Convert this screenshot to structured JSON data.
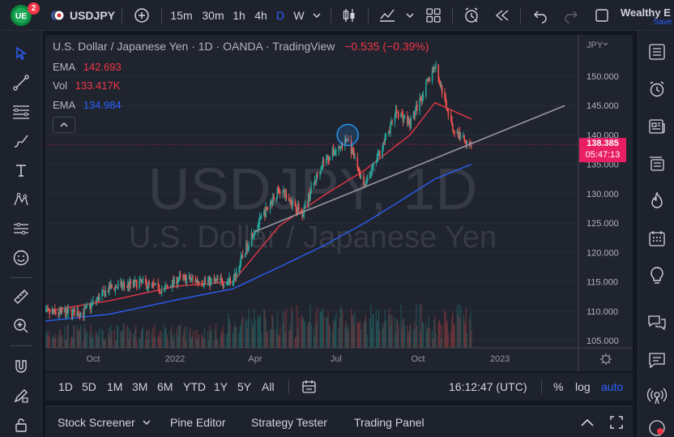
{
  "topbar": {
    "notification_count": "2",
    "symbol": "USDJPY",
    "intervals": [
      "15m",
      "30m",
      "1h",
      "4h",
      "D",
      "W"
    ],
    "account_name": "Wealthy E",
    "save_label": "Save"
  },
  "chart": {
    "header": "U.S. Dollar / Japanese Yen · 1D · OANDA · TradingView",
    "change": "−0.535 (−0.39%)",
    "watermark_symbol": "USDJPY, 1D",
    "watermark_name": "U.S. Dollar / Japanese Yen",
    "currency": "JPY",
    "legend": [
      {
        "label": "EMA",
        "value": "142.693",
        "color": "#f23645"
      },
      {
        "label": "Vol",
        "value": "133.417K",
        "color": "#f23645"
      },
      {
        "label": "EMA",
        "value": "134.984",
        "color": "#2962ff"
      }
    ],
    "price_ticks": [
      "150.000",
      "145.000",
      "140.000",
      "135.000",
      "130.000",
      "125.000",
      "120.000",
      "115.000",
      "110.000",
      "105.000"
    ],
    "time_ticks": [
      "Oct",
      "2022",
      "Apr",
      "Jul",
      "Oct",
      "2023"
    ],
    "last_price": "138.385",
    "countdown": "05:47:13",
    "colors": {
      "up": "#26a69a",
      "down": "#ef5350",
      "ema_fast": "#f23645",
      "ema_slow": "#2962ff",
      "trendline": "#9598a1",
      "price_label": "#e91e63"
    }
  },
  "chart_data": {
    "type": "candlestick",
    "title": "U.S. Dollar / Japanese Yen · 1D · OANDA",
    "ylim": [
      104,
      152
    ],
    "y_ticks": [
      105,
      110,
      115,
      120,
      125,
      130,
      135,
      140,
      145,
      150
    ],
    "x_ticks": [
      "Oct",
      "2022",
      "Apr",
      "Jul",
      "Oct",
      "2023"
    ],
    "last_price": 138.385,
    "price_anchors": [
      {
        "date": "2021-08-01",
        "close": 109.6
      },
      {
        "date": "2021-09-20",
        "close": 109.8
      },
      {
        "date": "2021-10-20",
        "close": 114.0
      },
      {
        "date": "2021-11-25",
        "close": 114.8
      },
      {
        "date": "2021-12-20",
        "close": 113.6
      },
      {
        "date": "2022-01-05",
        "close": 115.6
      },
      {
        "date": "2022-02-10",
        "close": 115.0
      },
      {
        "date": "2022-03-07",
        "close": 115.2
      },
      {
        "date": "2022-03-28",
        "close": 123.0
      },
      {
        "date": "2022-04-28",
        "close": 130.8
      },
      {
        "date": "2022-05-24",
        "close": 126.8
      },
      {
        "date": "2022-06-15",
        "close": 135.2
      },
      {
        "date": "2022-07-14",
        "close": 139.2
      },
      {
        "date": "2022-08-02",
        "close": 131.0
      },
      {
        "date": "2022-09-07",
        "close": 144.0
      },
      {
        "date": "2022-09-22",
        "close": 142.0
      },
      {
        "date": "2022-10-20",
        "close": 151.8
      },
      {
        "date": "2022-11-10",
        "close": 140.8
      },
      {
        "date": "2022-11-30",
        "close": 138.4
      }
    ],
    "ema_fast_anchors": [
      {
        "date": "2021-08-01",
        "value": 109.8
      },
      {
        "date": "2021-10-20",
        "value": 111.8
      },
      {
        "date": "2022-01-05",
        "value": 114.3
      },
      {
        "date": "2022-03-07",
        "value": 115.0
      },
      {
        "date": "2022-04-28",
        "value": 124.5
      },
      {
        "date": "2022-06-15",
        "value": 129.5
      },
      {
        "date": "2022-08-02",
        "value": 134.0
      },
      {
        "date": "2022-09-22",
        "value": 140.0
      },
      {
        "date": "2022-10-20",
        "value": 145.5
      },
      {
        "date": "2022-11-30",
        "value": 142.7
      }
    ],
    "ema_slow_anchors": [
      {
        "date": "2021-08-01",
        "value": 108.2
      },
      {
        "date": "2021-10-20",
        "value": 109.5
      },
      {
        "date": "2022-01-05",
        "value": 112.0
      },
      {
        "date": "2022-03-07",
        "value": 113.8
      },
      {
        "date": "2022-04-28",
        "value": 117.5
      },
      {
        "date": "2022-06-15",
        "value": 121.0
      },
      {
        "date": "2022-08-02",
        "value": 125.0
      },
      {
        "date": "2022-09-22",
        "value": 129.8
      },
      {
        "date": "2022-10-20",
        "value": 132.5
      },
      {
        "date": "2022-11-30",
        "value": 135.0
      }
    ],
    "trendline": {
      "start": {
        "date": "2022-03-31",
        "price": 123.5
      },
      "end": {
        "date": "2023-03-15",
        "price": 145.0
      }
    },
    "highlight": {
      "date": "2022-07-14",
      "price": 140.0
    }
  },
  "range_bar": {
    "ranges": [
      "1D",
      "5D",
      "1M",
      "3M",
      "6M",
      "YTD",
      "1Y",
      "5Y",
      "All"
    ],
    "clock": "16:12:47 (UTC)",
    "percent": "%",
    "log": "log",
    "auto": "auto"
  },
  "bottom_panel": {
    "tabs": [
      "Stock Screener",
      "Pine Editor",
      "Strategy Tester",
      "Trading Panel"
    ]
  }
}
